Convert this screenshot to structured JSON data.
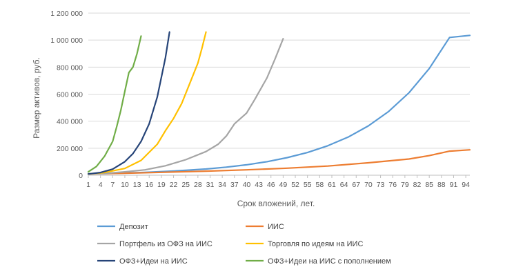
{
  "chart_data": {
    "type": "line",
    "title": "",
    "xlabel": "Срок вложений, лет.",
    "ylabel": "Размер активов, руб.",
    "xlim": [
      1,
      95
    ],
    "ylim": [
      0,
      1200000
    ],
    "y_ticks": [
      0,
      200000,
      400000,
      600000,
      800000,
      1000000,
      1200000
    ],
    "y_tick_labels": [
      "0",
      "200 000",
      "400 000",
      "600 000",
      "800 000",
      "1 000 000",
      "1 200 000"
    ],
    "x_ticks": [
      1,
      4,
      7,
      10,
      13,
      16,
      19,
      22,
      25,
      28,
      31,
      34,
      37,
      40,
      43,
      46,
      49,
      52,
      55,
      58,
      61,
      64,
      67,
      70,
      73,
      76,
      79,
      82,
      85,
      88,
      91,
      94
    ],
    "grid": "horizontal",
    "legend_position": "bottom",
    "series": [
      {
        "name": "Депозит",
        "color": "#5B9BD5",
        "x": [
          1,
          5,
          10,
          15,
          20,
          25,
          30,
          35,
          40,
          45,
          50,
          55,
          60,
          65,
          70,
          75,
          80,
          85,
          90,
          95
        ],
        "values": [
          11000,
          12000,
          16000,
          21000,
          28000,
          36000,
          46000,
          60000,
          77000,
          100000,
          130000,
          168000,
          218000,
          282000,
          365000,
          472000,
          610000,
          790000,
          1020000,
          1035000
        ]
      },
      {
        "name": "ИИС",
        "color": "#ED7D31",
        "x": [
          1,
          10,
          20,
          30,
          40,
          50,
          60,
          70,
          80,
          85,
          90,
          95
        ],
        "values": [
          9000,
          15000,
          22000,
          30000,
          40000,
          52000,
          68000,
          92000,
          120000,
          145000,
          178000,
          188000
        ]
      },
      {
        "name": "Портфель из ОФЗ на ИИС",
        "color": "#A5A5A5",
        "x": [
          1,
          5,
          10,
          15,
          20,
          25,
          30,
          33,
          35,
          37,
          40,
          42,
          45,
          47,
          49
        ],
        "values": [
          9000,
          13000,
          25000,
          40000,
          70000,
          115000,
          175000,
          230000,
          290000,
          380000,
          460000,
          560000,
          720000,
          860000,
          1010000
        ]
      },
      {
        "name": "Торговля по идеям на ИИС",
        "color": "#FFC000",
        "x": [
          1,
          5,
          10,
          14,
          18,
          20,
          22,
          24,
          26,
          28,
          29,
          30
        ],
        "values": [
          9000,
          20000,
          50000,
          110000,
          230000,
          330000,
          420000,
          530000,
          680000,
          830000,
          940000,
          1060000
        ]
      },
      {
        "name": "ОФЗ+Идеи на ИИС",
        "color": "#264478",
        "x": [
          1,
          4,
          7,
          10,
          12,
          14,
          16,
          18,
          20,
          21
        ],
        "values": [
          9000,
          20000,
          45000,
          100000,
          160000,
          250000,
          380000,
          580000,
          870000,
          1060000
        ]
      },
      {
        "name": "ОФЗ+Идеи на ИИС с пополнением",
        "color": "#70AD47",
        "x": [
          1,
          3,
          5,
          7,
          8,
          9,
          10,
          11,
          12,
          13,
          14
        ],
        "values": [
          25000,
          65000,
          140000,
          250000,
          360000,
          480000,
          620000,
          760000,
          800000,
          900000,
          1030000
        ]
      }
    ]
  }
}
